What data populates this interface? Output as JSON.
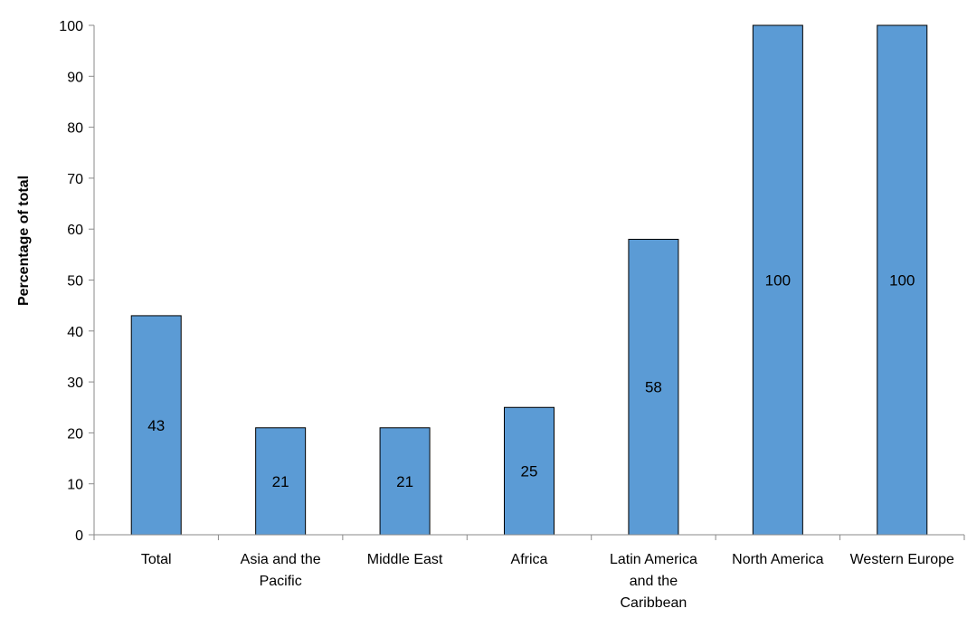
{
  "chart_data": {
    "type": "bar",
    "ylabel": "Percentage of total",
    "xlabel": "",
    "ylim": [
      0,
      100
    ],
    "yticks": [
      0,
      10,
      20,
      30,
      40,
      50,
      60,
      70,
      80,
      90,
      100
    ],
    "grid": false,
    "legend": "none",
    "categories": [
      "Total",
      "Asia and the Pacific",
      "Middle East",
      "Africa",
      "Latin America and the Caribbean",
      "North America",
      "Western Europe"
    ],
    "category_label_lines": [
      [
        "Total"
      ],
      [
        "Asia and the",
        "Pacific"
      ],
      [
        "Middle East"
      ],
      [
        "Africa"
      ],
      [
        "Latin America",
        "and the",
        "Caribbean"
      ],
      [
        "North America"
      ],
      [
        "Western Europe"
      ]
    ],
    "values": [
      43,
      21,
      21,
      25,
      58,
      100,
      100
    ],
    "data_labels": [
      "43",
      "21",
      "21",
      "25",
      "58",
      "100",
      "100"
    ],
    "bar_color": "#5b9bd5",
    "bar_edge_color": "#000000"
  }
}
